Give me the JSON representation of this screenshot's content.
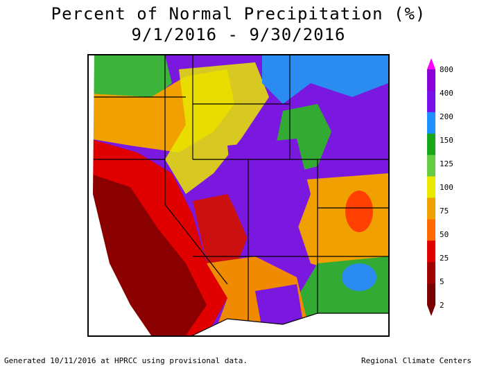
{
  "title": "Percent of Normal Precipitation (%)",
  "subtitle": "9/1/2016 - 9/30/2016",
  "legend": {
    "ticks": [
      "800",
      "400",
      "200",
      "150",
      "125",
      "100",
      "75",
      "50",
      "25",
      "5",
      "2"
    ],
    "colors": [
      "#ff00ff",
      "#8b00d6",
      "#7a10e8",
      "#1e90ff",
      "#1aa61a",
      "#66cc44",
      "#e8e800",
      "#f0a000",
      "#ff6a00",
      "#e00000",
      "#a00000",
      "#7a0000"
    ]
  },
  "footer": {
    "left": "Generated 10/11/2016 at HPRCC using provisional data.",
    "right": "Regional Climate Centers"
  }
}
